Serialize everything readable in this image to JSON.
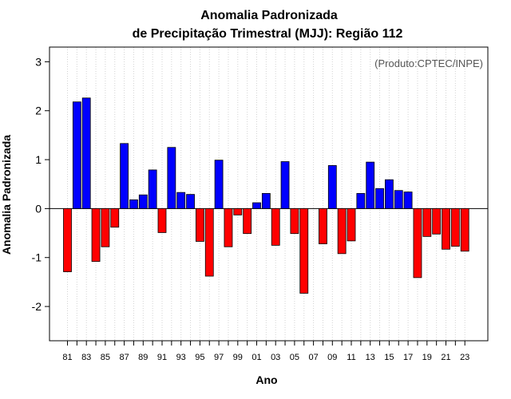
{
  "chart_data": {
    "type": "bar",
    "title_line1": "Anomalia Padronizada",
    "title_line2": "de Precipitação Trimestral (MJJ): Região 112",
    "xlabel": "Ano",
    "ylabel": "Anomalia Padronizada",
    "credit": "(Produto:CPTEC/INPE)",
    "ylim": [
      -2.7,
      3.3
    ],
    "yticks": [
      -2,
      -1,
      0,
      1,
      2,
      3
    ],
    "years": [
      1981,
      1982,
      1983,
      1984,
      1985,
      1986,
      1987,
      1988,
      1989,
      1990,
      1991,
      1992,
      1993,
      1994,
      1995,
      1996,
      1997,
      1998,
      1999,
      2000,
      2001,
      2002,
      2003,
      2004,
      2005,
      2006,
      2007,
      2008,
      2009,
      2010,
      2011,
      2012,
      2013,
      2014,
      2015,
      2016,
      2017,
      2018,
      2019,
      2020,
      2021,
      2022,
      2023
    ],
    "values": [
      -1.29,
      2.18,
      2.26,
      -1.08,
      -0.78,
      -0.38,
      1.33,
      0.18,
      0.28,
      0.79,
      -0.49,
      1.25,
      0.33,
      0.29,
      -0.67,
      -1.38,
      0.99,
      -0.78,
      -0.13,
      -0.51,
      0.12,
      0.31,
      -0.75,
      0.96,
      -0.51,
      -1.73,
      0.0,
      -0.72,
      0.88,
      -0.92,
      -0.66,
      0.31,
      0.95,
      0.41,
      0.59,
      0.37,
      0.34,
      -1.41,
      -0.57,
      -0.52,
      -0.83,
      -0.77,
      -0.87
    ],
    "xtick_labels": [
      "81",
      "83",
      "85",
      "87",
      "89",
      "91",
      "93",
      "95",
      "97",
      "99",
      "01",
      "03",
      "05",
      "07",
      "09",
      "11",
      "13",
      "15",
      "17",
      "19",
      "21",
      "23"
    ],
    "colors": {
      "positive": "#0000ff",
      "negative": "#ff0000",
      "grid": "#d3d3d3",
      "zero_line": "#000000"
    }
  }
}
